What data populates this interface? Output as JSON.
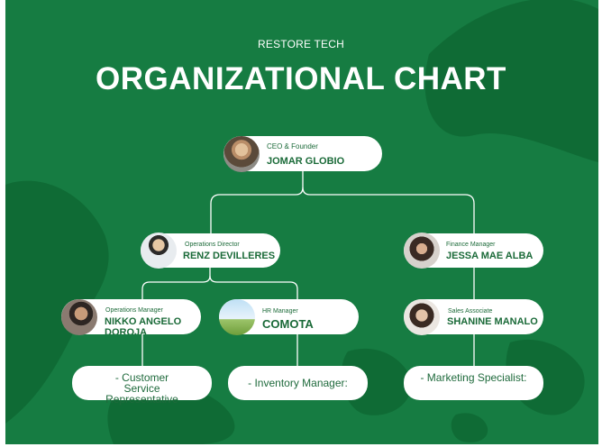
{
  "header": {
    "company": "RESTORE TECH",
    "title": "ORGANIZATIONAL CHART"
  },
  "colors": {
    "background": "#167c42",
    "blob": "#0f6b35",
    "card": "#ffffff",
    "text_green": "#1a6a38"
  },
  "people": {
    "ceo": {
      "role": "CEO & Founder",
      "name": "JOMAR GLOBIO"
    },
    "operations_director": {
      "role": "Operations Director",
      "name": "RENZ DEVILLERES"
    },
    "finance_manager": {
      "role": "Finance Manager",
      "name": "JESSA MAE ALBA"
    },
    "operations_manager": {
      "role": "Operations Manager",
      "name": "NIKKO ANGELO DOROJA"
    },
    "hr_manager": {
      "role": "HR Manager",
      "name": "COMOTA"
    },
    "sales_associate": {
      "role": "Sales Associate",
      "name": "SHANINE MANALO"
    }
  },
  "duties": {
    "customer_service": "- Customer Service Representative",
    "inventory": "- Inventory Manager:",
    "marketing": "- Marketing Specialist:"
  }
}
